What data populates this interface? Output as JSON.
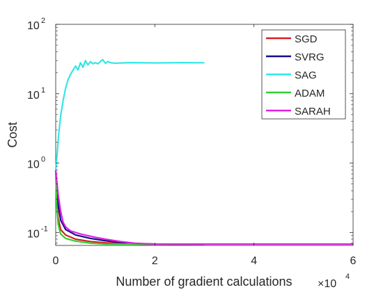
{
  "chart_data": {
    "type": "line",
    "xlabel": "Number of gradient calculations",
    "x_multiplier": "×10",
    "x_multiplier_exp": "4",
    "ylabel": "Cost",
    "yscale": "log",
    "xlim": [
      0,
      6
    ],
    "ylim": [
      0.065,
      100
    ],
    "x_ticks": [
      0,
      2,
      4,
      6
    ],
    "y_ticks": [
      {
        "value": 100,
        "base": "10",
        "exp": "2"
      },
      {
        "value": 10,
        "base": "10",
        "exp": "1"
      },
      {
        "value": 1,
        "base": "10",
        "exp": "0"
      },
      {
        "value": 0.1,
        "base": "10",
        "exp": "-1"
      }
    ],
    "grid": false,
    "legend_position": "top-right",
    "series": [
      {
        "name": "SGD",
        "color": "#d62020",
        "points": [
          [
            0,
            0.78
          ],
          [
            0.02,
            0.3
          ],
          [
            0.05,
            0.16
          ],
          [
            0.1,
            0.11
          ],
          [
            0.2,
            0.092
          ],
          [
            0.4,
            0.08
          ],
          [
            0.7,
            0.074
          ],
          [
            1.0,
            0.071
          ],
          [
            1.5,
            0.069
          ],
          [
            2.0,
            0.068
          ],
          [
            2.5,
            0.068
          ],
          [
            3.0,
            0.068
          ]
        ]
      },
      {
        "name": "SVRG",
        "color": "#0f0f8c",
        "points": [
          [
            0,
            0.78
          ],
          [
            0.05,
            0.25
          ],
          [
            0.1,
            0.15
          ],
          [
            0.2,
            0.11
          ],
          [
            0.4,
            0.092
          ],
          [
            0.7,
            0.082
          ],
          [
            1.0,
            0.076
          ],
          [
            1.3,
            0.072
          ],
          [
            1.6,
            0.069
          ],
          [
            2.0,
            0.068
          ],
          [
            3.0,
            0.068
          ]
        ]
      },
      {
        "name": "SAG",
        "color": "#33e6e6",
        "points": [
          [
            0,
            0.78
          ],
          [
            0.03,
            1.4
          ],
          [
            0.06,
            2.6
          ],
          [
            0.1,
            4.8
          ],
          [
            0.15,
            8.0
          ],
          [
            0.2,
            12
          ],
          [
            0.25,
            16
          ],
          [
            0.3,
            19
          ],
          [
            0.35,
            22
          ],
          [
            0.4,
            25
          ],
          [
            0.45,
            22
          ],
          [
            0.5,
            28
          ],
          [
            0.55,
            24
          ],
          [
            0.6,
            30
          ],
          [
            0.65,
            26
          ],
          [
            0.7,
            29
          ],
          [
            0.75,
            27
          ],
          [
            0.8,
            28
          ],
          [
            0.85,
            27
          ],
          [
            0.9,
            29
          ],
          [
            0.95,
            31
          ],
          [
            1.0,
            27.5
          ],
          [
            1.05,
            29
          ],
          [
            1.1,
            28
          ],
          [
            1.2,
            27.5
          ],
          [
            1.5,
            28
          ],
          [
            2.0,
            27.8
          ],
          [
            2.5,
            28
          ],
          [
            3.0,
            27.9
          ]
        ]
      },
      {
        "name": "ADAM",
        "color": "#2fd12f",
        "points": [
          [
            0,
            0.78
          ],
          [
            0.02,
            0.25
          ],
          [
            0.05,
            0.13
          ],
          [
            0.1,
            0.095
          ],
          [
            0.2,
            0.082
          ],
          [
            0.4,
            0.075
          ],
          [
            0.7,
            0.07
          ],
          [
            1.0,
            0.068
          ],
          [
            1.5,
            0.068
          ],
          [
            2.0,
            0.067
          ],
          [
            3.0,
            0.068
          ]
        ]
      },
      {
        "name": "SARAH",
        "color": "#e020e0",
        "points": [
          [
            0,
            0.78
          ],
          [
            0.05,
            0.35
          ],
          [
            0.1,
            0.2
          ],
          [
            0.15,
            0.14
          ],
          [
            0.2,
            0.12
          ],
          [
            0.3,
            0.105
          ],
          [
            0.5,
            0.095
          ],
          [
            0.8,
            0.085
          ],
          [
            1.0,
            0.08
          ],
          [
            1.3,
            0.074
          ],
          [
            1.6,
            0.07
          ],
          [
            2.0,
            0.068
          ],
          [
            3.0,
            0.068
          ],
          [
            4.0,
            0.068
          ],
          [
            5.0,
            0.068
          ],
          [
            6.0,
            0.068
          ]
        ]
      }
    ]
  }
}
